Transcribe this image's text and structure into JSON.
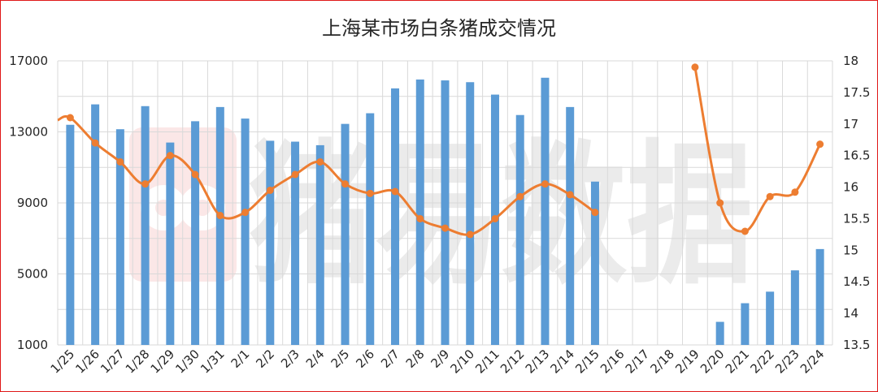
{
  "chart_data": {
    "type": "bar+line",
    "title": "上海某市场白条猪成交情况",
    "watermark": "猪易数据",
    "categories": [
      "1/25",
      "1/26",
      "1/27",
      "1/28",
      "1/29",
      "1/30",
      "1/31",
      "2/1",
      "2/2",
      "2/3",
      "2/4",
      "2/5",
      "2/6",
      "2/7",
      "2/8",
      "2/9",
      "2/10",
      "2/11",
      "2/12",
      "2/13",
      "2/14",
      "2/15",
      "2/16",
      "2/17",
      "2/18",
      "2/19",
      "2/20",
      "2/21",
      "2/22",
      "2/23",
      "2/24"
    ],
    "series": [
      {
        "type": "bar",
        "axis": "left",
        "color": "#5b9bd5",
        "values": [
          13400,
          14550,
          13150,
          14450,
          12400,
          13600,
          14400,
          13750,
          12500,
          12450,
          12250,
          13450,
          14050,
          15450,
          15950,
          15900,
          15800,
          15100,
          13950,
          16050,
          14400,
          10200,
          0,
          0,
          0,
          50,
          2300,
          3350,
          4000,
          5200,
          6400
        ]
      },
      {
        "type": "line",
        "axis": "right",
        "color": "#ed7d31",
        "values": [
          17.1,
          16.7,
          16.4,
          16.05,
          16.5,
          16.2,
          15.55,
          15.6,
          15.95,
          16.2,
          16.4,
          16.05,
          15.9,
          15.93,
          15.5,
          15.35,
          15.25,
          15.5,
          15.85,
          16.05,
          15.88,
          15.6,
          null,
          null,
          null,
          17.9,
          15.75,
          15.3,
          15.85,
          15.92,
          16.68
        ]
      }
    ],
    "left_axis": {
      "min": 1000,
      "max": 17000,
      "ticks": [
        1000,
        5000,
        9000,
        13000,
        17000
      ]
    },
    "right_axis": {
      "min": 13.5,
      "max": 18,
      "ticks": [
        "13.5",
        "14",
        "14.5",
        "15",
        "15.5",
        "16",
        "16.5",
        "17",
        "17.5",
        "18"
      ]
    },
    "grid": true,
    "legend": "none"
  }
}
